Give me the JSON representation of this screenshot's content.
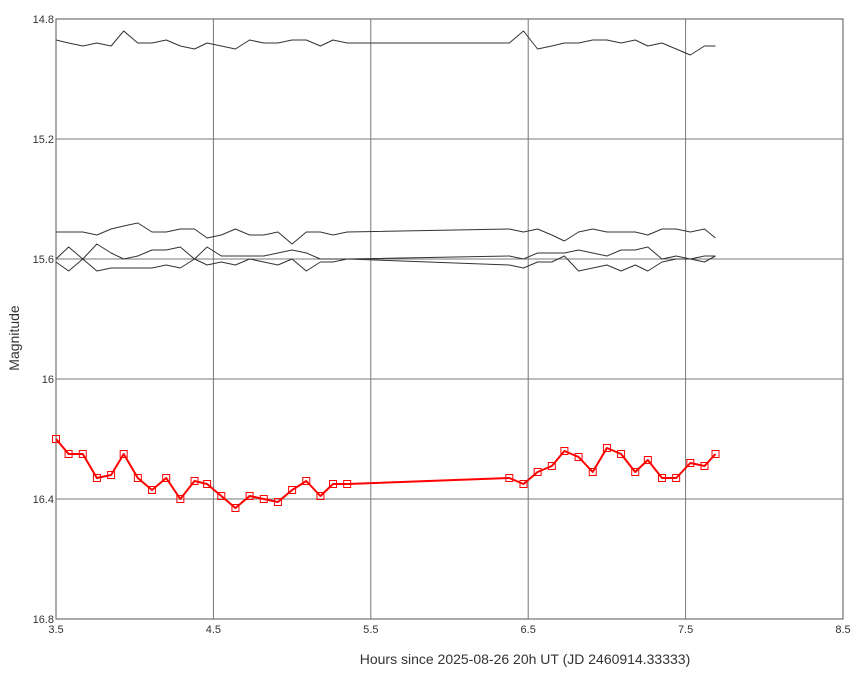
{
  "chart_data": {
    "type": "line",
    "title": "",
    "xlabel": "Hours since 2025-08-26 20h UT (JD 2460914.33333)",
    "ylabel": "Magnitude",
    "xlim": [
      3.5,
      8.5
    ],
    "ylim": [
      14.8,
      16.8
    ],
    "y_inverted": true,
    "grid": true,
    "x_ticks": [
      "3.5",
      "4.5",
      "5.5",
      "6.5",
      "7.5",
      "8.5"
    ],
    "y_ticks": [
      "14.8",
      "15.2",
      "15.6",
      "16",
      "16.4",
      "16.8"
    ],
    "x": [
      3.5,
      3.58,
      3.67,
      3.76,
      3.85,
      3.93,
      4.02,
      4.11,
      4.2,
      4.29,
      4.38,
      4.46,
      4.55,
      4.64,
      4.73,
      4.82,
      4.91,
      5.0,
      5.09,
      5.18,
      5.26,
      5.35,
      6.38,
      6.47,
      6.56,
      6.65,
      6.73,
      6.82,
      6.91,
      7.0,
      7.09,
      7.18,
      7.26,
      7.35,
      7.44,
      7.53,
      7.62,
      7.69
    ],
    "series": [
      {
        "color": "#ff0000",
        "marker": "square",
        "values": [
          16.2,
          16.25,
          16.25,
          16.33,
          16.32,
          16.25,
          16.33,
          16.37,
          16.33,
          16.4,
          16.34,
          16.35,
          16.39,
          16.43,
          16.39,
          16.4,
          16.41,
          16.37,
          16.34,
          16.39,
          16.35,
          16.35,
          16.33,
          16.35,
          16.31,
          16.29,
          16.24,
          16.26,
          16.31,
          16.23,
          16.25,
          16.31,
          16.27,
          16.33,
          16.33,
          16.28,
          16.29,
          16.25
        ]
      },
      {
        "color": "#333333",
        "values": [
          14.87,
          14.88,
          14.89,
          14.88,
          14.89,
          14.84,
          14.88,
          14.88,
          14.87,
          14.89,
          14.9,
          14.88,
          14.89,
          14.9,
          14.87,
          14.88,
          14.88,
          14.87,
          14.87,
          14.89,
          14.87,
          14.88,
          14.88,
          14.84,
          14.9,
          14.89,
          14.88,
          14.88,
          14.87,
          14.87,
          14.88,
          14.87,
          14.89,
          14.88,
          14.9,
          14.92,
          14.89,
          14.89
        ]
      },
      {
        "color": "#333333",
        "values": [
          15.51,
          15.51,
          15.51,
          15.52,
          15.5,
          15.49,
          15.48,
          15.51,
          15.51,
          15.5,
          15.5,
          15.53,
          15.52,
          15.5,
          15.52,
          15.52,
          15.51,
          15.55,
          15.51,
          15.51,
          15.52,
          15.51,
          15.5,
          15.51,
          15.5,
          15.52,
          15.54,
          15.51,
          15.5,
          15.51,
          15.51,
          15.51,
          15.52,
          15.5,
          15.5,
          15.51,
          15.5,
          15.53
        ]
      },
      {
        "color": "#333333",
        "values": [
          15.6,
          15.56,
          15.6,
          15.55,
          15.58,
          15.6,
          15.59,
          15.57,
          15.57,
          15.56,
          15.6,
          15.56,
          15.59,
          15.59,
          15.59,
          15.59,
          15.58,
          15.57,
          15.58,
          15.6,
          15.6,
          15.6,
          15.59,
          15.6,
          15.58,
          15.58,
          15.58,
          15.57,
          15.58,
          15.59,
          15.57,
          15.57,
          15.56,
          15.6,
          15.59,
          15.6,
          15.59,
          15.59
        ]
      },
      {
        "color": "#333333",
        "values": [
          15.61,
          15.64,
          15.6,
          15.64,
          15.63,
          15.63,
          15.63,
          15.63,
          15.62,
          15.63,
          15.6,
          15.62,
          15.61,
          15.62,
          15.6,
          15.61,
          15.62,
          15.6,
          15.64,
          15.61,
          15.61,
          15.6,
          15.62,
          15.63,
          15.61,
          15.61,
          15.59,
          15.64,
          15.63,
          15.62,
          15.64,
          15.62,
          15.64,
          15.61,
          15.6,
          15.6,
          15.61,
          15.59
        ]
      }
    ]
  }
}
